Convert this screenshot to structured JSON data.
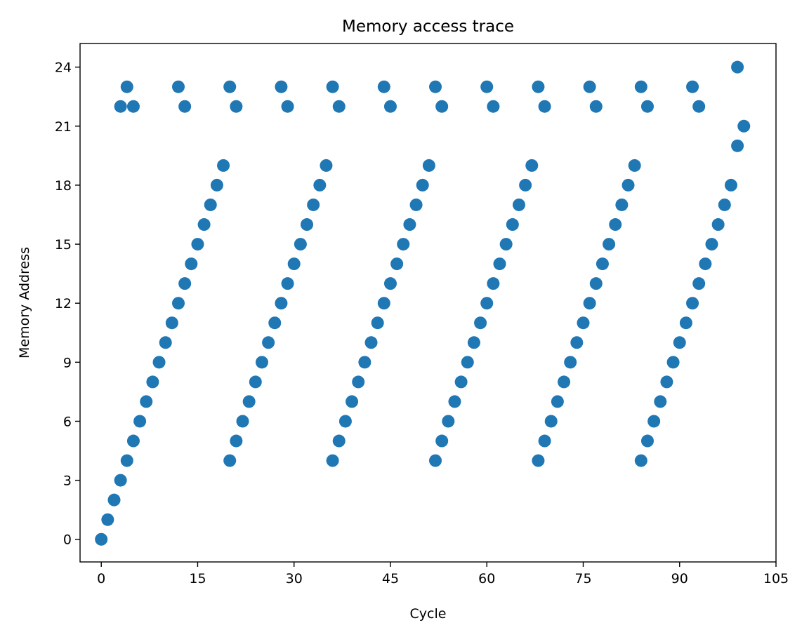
{
  "chart_data": {
    "type": "scatter",
    "title": "Memory access trace",
    "xlabel": "Cycle",
    "ylabel": "Memory Address",
    "xlim": [
      -3.3,
      105
    ],
    "ylim": [
      -1.15,
      25.2
    ],
    "xticks": [
      0,
      15,
      30,
      45,
      60,
      75,
      90,
      105
    ],
    "yticks": [
      0,
      3,
      6,
      9,
      12,
      15,
      18,
      21,
      24
    ],
    "grid": false,
    "marker_color": "#1f77b4",
    "series": [
      {
        "points": [
          [
            0,
            0
          ],
          [
            1,
            1
          ],
          [
            2,
            2
          ],
          [
            3,
            3
          ],
          [
            4,
            4
          ],
          [
            5,
            5
          ],
          [
            6,
            6
          ],
          [
            7,
            7
          ],
          [
            8,
            8
          ],
          [
            9,
            9
          ],
          [
            10,
            10
          ],
          [
            11,
            11
          ],
          [
            12,
            12
          ],
          [
            13,
            13
          ],
          [
            14,
            14
          ],
          [
            15,
            15
          ],
          [
            16,
            16
          ],
          [
            17,
            17
          ],
          [
            18,
            18
          ],
          [
            19,
            19
          ],
          [
            20,
            4
          ],
          [
            21,
            5
          ],
          [
            22,
            6
          ],
          [
            23,
            7
          ],
          [
            24,
            8
          ],
          [
            25,
            9
          ],
          [
            26,
            10
          ],
          [
            27,
            11
          ],
          [
            28,
            12
          ],
          [
            29,
            13
          ],
          [
            30,
            14
          ],
          [
            31,
            15
          ],
          [
            32,
            16
          ],
          [
            33,
            17
          ],
          [
            34,
            18
          ],
          [
            35,
            19
          ],
          [
            36,
            4
          ],
          [
            37,
            5
          ],
          [
            38,
            6
          ],
          [
            39,
            7
          ],
          [
            40,
            8
          ],
          [
            41,
            9
          ],
          [
            42,
            10
          ],
          [
            43,
            11
          ],
          [
            44,
            12
          ],
          [
            45,
            13
          ],
          [
            46,
            14
          ],
          [
            47,
            15
          ],
          [
            48,
            16
          ],
          [
            49,
            17
          ],
          [
            50,
            18
          ],
          [
            51,
            19
          ],
          [
            52,
            4
          ],
          [
            53,
            5
          ],
          [
            54,
            6
          ],
          [
            55,
            7
          ],
          [
            56,
            8
          ],
          [
            57,
            9
          ],
          [
            58,
            10
          ],
          [
            59,
            11
          ],
          [
            60,
            12
          ],
          [
            61,
            13
          ],
          [
            62,
            14
          ],
          [
            63,
            15
          ],
          [
            64,
            16
          ],
          [
            65,
            17
          ],
          [
            66,
            18
          ],
          [
            67,
            19
          ],
          [
            68,
            4
          ],
          [
            69,
            5
          ],
          [
            70,
            6
          ],
          [
            71,
            7
          ],
          [
            72,
            8
          ],
          [
            73,
            9
          ],
          [
            74,
            10
          ],
          [
            75,
            11
          ],
          [
            76,
            12
          ],
          [
            77,
            13
          ],
          [
            78,
            14
          ],
          [
            79,
            15
          ],
          [
            80,
            16
          ],
          [
            81,
            17
          ],
          [
            82,
            18
          ],
          [
            83,
            19
          ],
          [
            84,
            4
          ],
          [
            85,
            5
          ],
          [
            86,
            6
          ],
          [
            87,
            7
          ],
          [
            88,
            8
          ],
          [
            89,
            9
          ],
          [
            90,
            10
          ],
          [
            91,
            11
          ],
          [
            92,
            12
          ],
          [
            93,
            13
          ],
          [
            94,
            14
          ],
          [
            95,
            15
          ],
          [
            96,
            16
          ],
          [
            97,
            17
          ],
          [
            98,
            18
          ],
          [
            99,
            20
          ],
          [
            100,
            21
          ],
          [
            3,
            22
          ],
          [
            4,
            23
          ],
          [
            5,
            22
          ],
          [
            12,
            23
          ],
          [
            13,
            22
          ],
          [
            20,
            23
          ],
          [
            21,
            22
          ],
          [
            28,
            23
          ],
          [
            29,
            22
          ],
          [
            36,
            23
          ],
          [
            37,
            22
          ],
          [
            44,
            23
          ],
          [
            45,
            22
          ],
          [
            52,
            23
          ],
          [
            53,
            22
          ],
          [
            60,
            23
          ],
          [
            61,
            22
          ],
          [
            68,
            23
          ],
          [
            69,
            22
          ],
          [
            76,
            23
          ],
          [
            77,
            22
          ],
          [
            84,
            23
          ],
          [
            85,
            22
          ],
          [
            92,
            23
          ],
          [
            93,
            22
          ],
          [
            99,
            24
          ]
        ]
      }
    ]
  }
}
